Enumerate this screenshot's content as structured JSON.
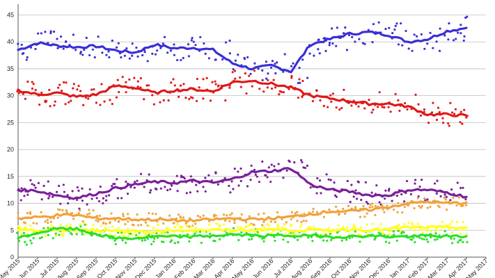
{
  "chart_data": {
    "type": "line",
    "title": "",
    "xlabel": "",
    "ylabel": "",
    "ylim": [
      0,
      47
    ],
    "grid": true,
    "legend": "none",
    "y_ticks": [
      "0",
      "5",
      "10",
      "15",
      "20",
      "25",
      "30",
      "35",
      "40",
      "45"
    ],
    "x_ticks": [
      "May 2015",
      "Jun 2015",
      "Jul 2015",
      "Aug 2015",
      "Sep 2015",
      "Oct 2015",
      "Nov 2015",
      "Dec 2015",
      "Jan 2016",
      "Feb 2016",
      "Mar 2016",
      "Apr 2016",
      "May 2016",
      "Jun 2016",
      "Jul 2016",
      "Aug 2016",
      "Sep 2016",
      "Oct 2016",
      "Nov 2016",
      "Dec 2016",
      "Jan 2017",
      "Feb 2017",
      "Mar 2017",
      "Apr 2017",
      "May 2017"
    ],
    "series": [
      {
        "color": "#3a2fd6",
        "values": [
          38.5,
          39.8,
          39.3,
          39.0,
          39.2,
          38.4,
          38.0,
          39.5,
          38.8,
          38.9,
          38.5,
          36.0,
          35.0,
          35.6,
          34.5,
          39.5,
          40.5,
          41.5,
          41.8,
          41.3,
          40.0,
          40.5,
          42.0,
          42.6
        ]
      },
      {
        "color": "#e01818",
        "values": [
          31.0,
          30.2,
          30.5,
          29.8,
          30.2,
          31.8,
          31.5,
          30.5,
          31.0,
          31.2,
          30.8,
          32.5,
          32.8,
          32.2,
          31.5,
          30.0,
          29.5,
          29.0,
          28.5,
          28.5,
          28.0,
          26.5,
          26.5,
          26.3
        ]
      },
      {
        "color": "#7a1f9a",
        "values": [
          12.5,
          12.3,
          11.5,
          11.0,
          11.8,
          12.8,
          13.5,
          14.0,
          13.8,
          14.2,
          13.8,
          14.5,
          15.8,
          16.0,
          16.5,
          13.5,
          12.5,
          12.2,
          11.5,
          11.5,
          12.5,
          12.5,
          12.0,
          11.2
        ]
      },
      {
        "color": "#f0a23a",
        "values": [
          7.2,
          7.4,
          7.8,
          7.8,
          7.2,
          7.2,
          7.0,
          7.0,
          6.8,
          6.8,
          7.0,
          7.2,
          7.0,
          7.2,
          7.5,
          8.0,
          8.5,
          8.5,
          8.8,
          9.3,
          10.0,
          10.3,
          10.0,
          10.1
        ]
      },
      {
        "color": "#ffff1e",
        "values": [
          5.0,
          5.0,
          5.0,
          5.2,
          5.0,
          4.8,
          4.8,
          4.8,
          5.0,
          5.0,
          5.0,
          5.0,
          5.0,
          5.2,
          5.0,
          5.0,
          5.0,
          5.2,
          5.0,
          5.2,
          5.5,
          5.5,
          5.5,
          5.5
        ]
      },
      {
        "color": "#2adf2a",
        "values": [
          3.5,
          4.5,
          5.3,
          5.2,
          4.3,
          3.5,
          3.5,
          3.8,
          3.8,
          3.8,
          4.0,
          4.2,
          4.0,
          4.0,
          4.0,
          4.0,
          3.8,
          3.8,
          4.0,
          3.8,
          3.8,
          4.0,
          3.8,
          3.9
        ]
      }
    ]
  }
}
